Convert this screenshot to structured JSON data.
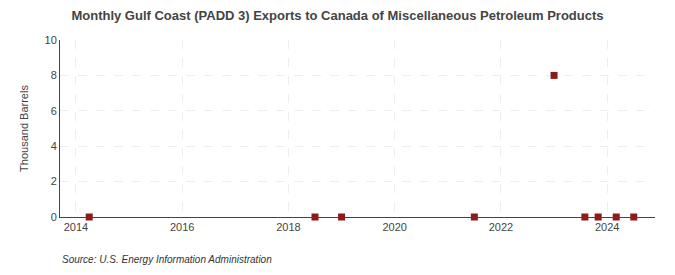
{
  "chart_data": {
    "type": "scatter",
    "title": "Monthly Gulf Coast (PADD 3) Exports to Canada of Miscellaneous Petroleum Products",
    "ylabel": "Thousand Barrels",
    "source": "Source: U.S. Energy Information Administration",
    "x": [
      2014.25,
      2018.5,
      2019.0,
      2021.5,
      2023.0,
      2023.58,
      2023.83,
      2024.17,
      2024.5
    ],
    "values": [
      0.0,
      0.0,
      0.0,
      0.0,
      8.0,
      0.0,
      0.0,
      0.0,
      0.0
    ],
    "color": "#8b1a1a",
    "marker": "square",
    "xlim": [
      2013.7,
      2024.9
    ],
    "xticks": [
      2014,
      2016,
      2018,
      2020,
      2022,
      2024
    ],
    "ylim": [
      0,
      10
    ],
    "yticks": [
      0,
      2,
      4,
      6,
      8,
      10
    ],
    "grid": true
  }
}
